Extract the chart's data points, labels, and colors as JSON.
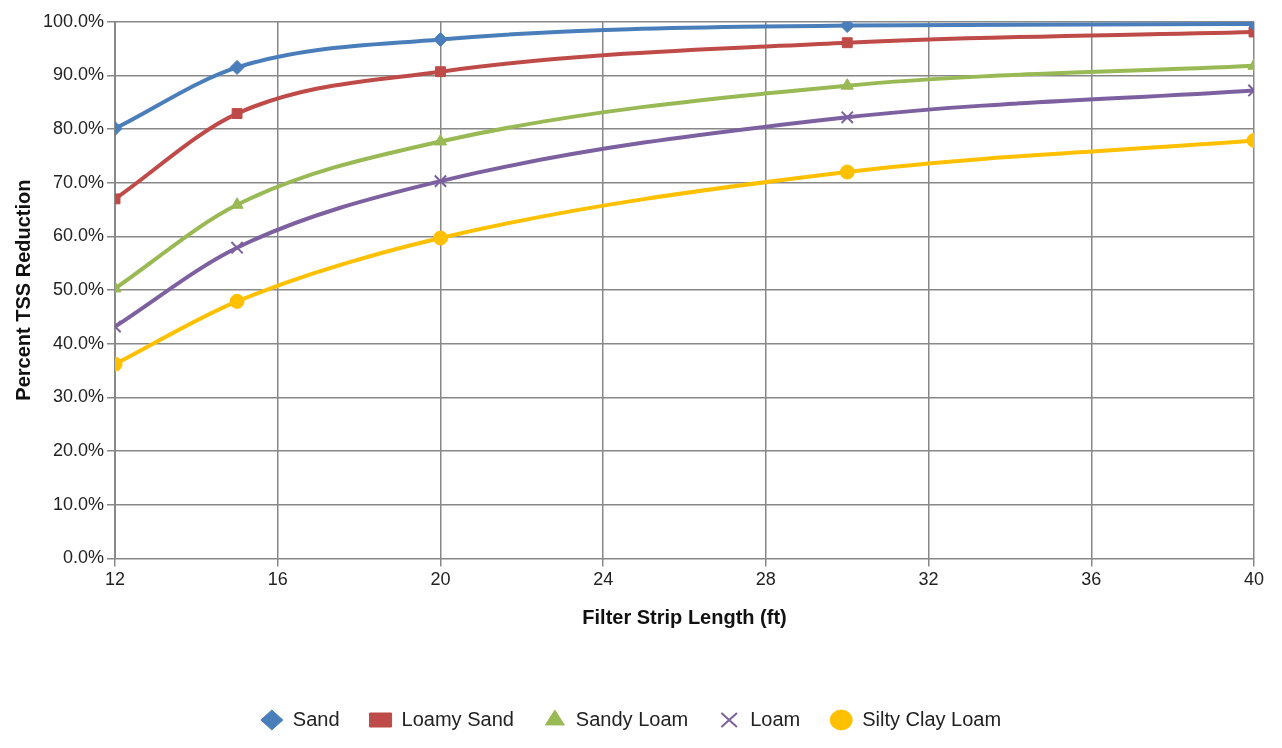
{
  "chart_data": {
    "type": "line",
    "xlabel": "Filter Strip Length (ft)",
    "ylabel": "Percent TSS Reduction",
    "x": [
      12,
      15,
      20,
      30,
      40
    ],
    "xlim": [
      12,
      40
    ],
    "xticks": [
      12,
      16,
      20,
      24,
      28,
      32,
      36,
      40
    ],
    "ylim": [
      0,
      100
    ],
    "yticks": [
      {
        "value": 0,
        "label": "0.0%"
      },
      {
        "value": 10,
        "label": "10.0%"
      },
      {
        "value": 20,
        "label": "20.0%"
      },
      {
        "value": 30,
        "label": "30.0%"
      },
      {
        "value": 40,
        "label": "40.0%"
      },
      {
        "value": 50,
        "label": "50.0%"
      },
      {
        "value": 60,
        "label": "60.0%"
      },
      {
        "value": 70,
        "label": "70.0%"
      },
      {
        "value": 80,
        "label": "80.0%"
      },
      {
        "value": 90,
        "label": "90.0%"
      },
      {
        "value": 100,
        "label": "100.0%"
      }
    ],
    "grid": true,
    "legend": "bottom",
    "series": [
      {
        "name": "Sand",
        "color": "#4a7ebb",
        "marker": "diamond",
        "values": [
          80.1,
          91.5,
          96.7,
          99.3,
          99.6
        ]
      },
      {
        "name": "Loamy Sand",
        "color": "#be4b48",
        "marker": "square",
        "values": [
          67.0,
          82.9,
          90.7,
          96.1,
          98.1
        ]
      },
      {
        "name": "Sandy Loam",
        "color": "#98b954",
        "marker": "triangle",
        "values": [
          50.3,
          65.9,
          77.7,
          88.1,
          91.8
        ]
      },
      {
        "name": "Loam",
        "color": "#7d60a0",
        "marker": "cross",
        "values": [
          43.2,
          57.9,
          70.3,
          82.2,
          87.2
        ]
      },
      {
        "name": "Silty Clay Loam",
        "color": "#ffc000",
        "marker": "circle",
        "values": [
          36.2,
          47.9,
          59.7,
          72.0,
          77.9
        ]
      }
    ]
  }
}
